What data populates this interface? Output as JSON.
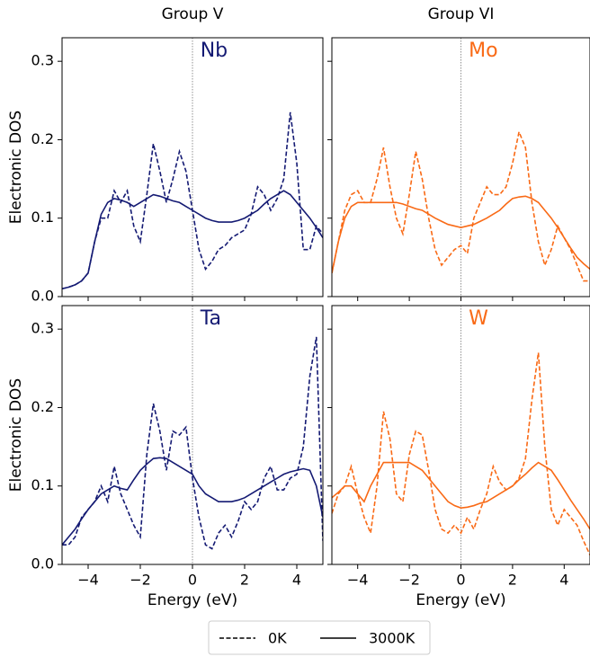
{
  "chart_data": [
    {
      "type": "line",
      "title": "Group V",
      "annotation": "Nb",
      "ylabel": "Electronic DOS",
      "x": [
        -5,
        -4.75,
        -4.5,
        -4.25,
        -4,
        -3.75,
        -3.5,
        -3.25,
        -3,
        -2.75,
        -2.5,
        -2.25,
        -2,
        -1.75,
        -1.5,
        -1.25,
        -1,
        -0.75,
        -0.5,
        -0.25,
        0,
        0.25,
        0.5,
        0.75,
        1,
        1.25,
        1.5,
        1.75,
        2,
        2.25,
        2.5,
        2.75,
        3,
        3.25,
        3.5,
        3.75,
        4,
        4.25,
        4.5,
        4.75,
        5
      ],
      "series": [
        {
          "name": "0K",
          "color": "#141a73",
          "line_style": "dashed",
          "values": [
            0.01,
            0.012,
            0.015,
            0.02,
            0.03,
            0.07,
            0.1,
            0.1,
            0.135,
            0.12,
            0.135,
            0.09,
            0.07,
            0.13,
            0.195,
            0.16,
            0.12,
            0.15,
            0.185,
            0.16,
            0.11,
            0.06,
            0.035,
            0.045,
            0.06,
            0.065,
            0.075,
            0.08,
            0.085,
            0.105,
            0.14,
            0.13,
            0.11,
            0.125,
            0.15,
            0.235,
            0.17,
            0.06,
            0.06,
            0.09,
            0.08
          ]
        },
        {
          "name": "3000K",
          "color": "#141a73",
          "line_style": "solid",
          "values": [
            0.01,
            0.012,
            0.015,
            0.02,
            0.03,
            0.07,
            0.105,
            0.12,
            0.125,
            0.123,
            0.12,
            0.115,
            0.12,
            0.125,
            0.13,
            0.128,
            0.125,
            0.122,
            0.12,
            0.115,
            0.11,
            0.105,
            0.1,
            0.097,
            0.095,
            0.095,
            0.095,
            0.097,
            0.1,
            0.105,
            0.11,
            0.118,
            0.125,
            0.13,
            0.135,
            0.13,
            0.12,
            0.11,
            0.1,
            0.088,
            0.075
          ]
        }
      ],
      "xlim": [
        -5,
        5
      ],
      "ylim": [
        0,
        0.33
      ],
      "xticks": [
        {
          "value": -4,
          "label": "−4"
        },
        {
          "value": -2,
          "label": "−2"
        },
        0,
        2,
        4
      ],
      "xtick_labels": false,
      "yticks": [
        {
          "value": 0,
          "label": "0.0"
        },
        0.1,
        0.2,
        0.3
      ],
      "ytick_labels": true,
      "vline": 0,
      "legend": "bottom"
    },
    {
      "type": "line",
      "title": "Group VI",
      "annotation": "Mo",
      "x": [
        -5,
        -4.75,
        -4.5,
        -4.25,
        -4,
        -3.75,
        -3.5,
        -3.25,
        -3,
        -2.75,
        -2.5,
        -2.25,
        -2,
        -1.75,
        -1.5,
        -1.25,
        -1,
        -0.75,
        -0.5,
        -0.25,
        0,
        0.25,
        0.5,
        0.75,
        1,
        1.25,
        1.5,
        1.75,
        2,
        2.25,
        2.5,
        2.75,
        3,
        3.25,
        3.5,
        3.75,
        4,
        4.25,
        4.5,
        4.75,
        5
      ],
      "series": [
        {
          "name": "0K",
          "color": "#f96a16",
          "line_style": "dashed",
          "values": [
            0.03,
            0.07,
            0.11,
            0.13,
            0.135,
            0.12,
            0.12,
            0.15,
            0.19,
            0.14,
            0.1,
            0.08,
            0.13,
            0.185,
            0.15,
            0.1,
            0.06,
            0.04,
            0.05,
            0.06,
            0.065,
            0.055,
            0.1,
            0.12,
            0.14,
            0.13,
            0.13,
            0.14,
            0.17,
            0.21,
            0.19,
            0.12,
            0.07,
            0.04,
            0.06,
            0.09,
            0.075,
            0.06,
            0.04,
            0.02,
            0.02
          ]
        },
        {
          "name": "3000K",
          "color": "#f96a16",
          "line_style": "solid",
          "values": [
            0.03,
            0.07,
            0.1,
            0.115,
            0.12,
            0.12,
            0.12,
            0.12,
            0.12,
            0.12,
            0.12,
            0.118,
            0.115,
            0.112,
            0.11,
            0.105,
            0.1,
            0.096,
            0.092,
            0.09,
            0.088,
            0.09,
            0.092,
            0.096,
            0.1,
            0.105,
            0.11,
            0.118,
            0.125,
            0.127,
            0.128,
            0.125,
            0.12,
            0.11,
            0.1,
            0.088,
            0.075,
            0.062,
            0.05,
            0.042,
            0.035
          ]
        }
      ],
      "xlim": [
        -5,
        5
      ],
      "ylim": [
        0,
        0.33
      ],
      "xticks": [
        {
          "value": -4,
          "label": "−4"
        },
        {
          "value": -2,
          "label": "−2"
        },
        0,
        2,
        4
      ],
      "xtick_labels": false,
      "yticks": [
        0,
        0.1,
        0.2,
        0.3
      ],
      "ytick_labels": false,
      "vline": 0
    },
    {
      "type": "line",
      "annotation": "Ta",
      "ylabel": "Electronic DOS",
      "xlabel": "Energy (eV)",
      "x": [
        -5,
        -4.75,
        -4.5,
        -4.25,
        -4,
        -3.75,
        -3.5,
        -3.25,
        -3,
        -2.75,
        -2.5,
        -2.25,
        -2,
        -1.75,
        -1.5,
        -1.25,
        -1,
        -0.75,
        -0.5,
        -0.25,
        0,
        0.25,
        0.5,
        0.75,
        1,
        1.25,
        1.5,
        1.75,
        2,
        2.25,
        2.5,
        2.75,
        3,
        3.25,
        3.5,
        3.75,
        4,
        4.25,
        4.5,
        4.75,
        5
      ],
      "series": [
        {
          "name": "0K",
          "color": "#141a73",
          "line_style": "dashed",
          "values": [
            0.025,
            0.025,
            0.035,
            0.06,
            0.07,
            0.08,
            0.1,
            0.08,
            0.125,
            0.09,
            0.07,
            0.05,
            0.035,
            0.14,
            0.205,
            0.17,
            0.12,
            0.17,
            0.165,
            0.175,
            0.11,
            0.06,
            0.025,
            0.02,
            0.04,
            0.05,
            0.035,
            0.055,
            0.08,
            0.07,
            0.08,
            0.11,
            0.125,
            0.095,
            0.095,
            0.11,
            0.115,
            0.15,
            0.24,
            0.29,
            0.03
          ]
        },
        {
          "name": "3000K",
          "color": "#141a73",
          "line_style": "solid",
          "values": [
            0.025,
            0.035,
            0.045,
            0.058,
            0.07,
            0.08,
            0.09,
            0.095,
            0.1,
            0.097,
            0.095,
            0.108,
            0.12,
            0.128,
            0.135,
            0.136,
            0.135,
            0.13,
            0.125,
            0.12,
            0.115,
            0.1,
            0.09,
            0.085,
            0.08,
            0.08,
            0.08,
            0.082,
            0.085,
            0.09,
            0.095,
            0.1,
            0.105,
            0.11,
            0.115,
            0.118,
            0.12,
            0.122,
            0.12,
            0.1,
            0.06
          ]
        }
      ],
      "xlim": [
        -5,
        5
      ],
      "ylim": [
        0,
        0.33
      ],
      "xticks": [
        {
          "value": -4,
          "label": "−4"
        },
        {
          "value": -2,
          "label": "−2"
        },
        0,
        2,
        4
      ],
      "xtick_labels": true,
      "yticks": [
        {
          "value": 0,
          "label": "0.0"
        },
        0.1,
        0.2,
        0.3
      ],
      "ytick_labels": true,
      "vline": 0
    },
    {
      "type": "line",
      "annotation": "W",
      "xlabel": "Energy (eV)",
      "x": [
        -5,
        -4.75,
        -4.5,
        -4.25,
        -4,
        -3.75,
        -3.5,
        -3.25,
        -3,
        -2.75,
        -2.5,
        -2.25,
        -2,
        -1.75,
        -1.5,
        -1.25,
        -1,
        -0.75,
        -0.5,
        -0.25,
        0,
        0.25,
        0.5,
        0.75,
        1,
        1.25,
        1.5,
        1.75,
        2,
        2.25,
        2.5,
        2.75,
        3,
        3.25,
        3.5,
        3.75,
        4,
        4.25,
        4.5,
        4.75,
        5
      ],
      "series": [
        {
          "name": "0K",
          "color": "#f96a16",
          "line_style": "dashed",
          "values": [
            0.065,
            0.09,
            0.1,
            0.125,
            0.09,
            0.06,
            0.04,
            0.1,
            0.195,
            0.16,
            0.09,
            0.08,
            0.14,
            0.17,
            0.165,
            0.12,
            0.07,
            0.045,
            0.04,
            0.05,
            0.04,
            0.06,
            0.045,
            0.07,
            0.09,
            0.125,
            0.105,
            0.095,
            0.1,
            0.11,
            0.135,
            0.21,
            0.27,
            0.15,
            0.07,
            0.05,
            0.07,
            0.06,
            0.05,
            0.03,
            0.012
          ]
        },
        {
          "name": "3000K",
          "color": "#f96a16",
          "line_style": "solid",
          "values": [
            0.085,
            0.092,
            0.1,
            0.1,
            0.09,
            0.08,
            0.1,
            0.115,
            0.13,
            0.13,
            0.13,
            0.13,
            0.13,
            0.125,
            0.12,
            0.11,
            0.1,
            0.09,
            0.08,
            0.075,
            0.072,
            0.073,
            0.075,
            0.078,
            0.08,
            0.085,
            0.09,
            0.095,
            0.1,
            0.108,
            0.115,
            0.123,
            0.13,
            0.125,
            0.12,
            0.108,
            0.095,
            0.082,
            0.07,
            0.058,
            0.045
          ]
        }
      ],
      "xlim": [
        -5,
        5
      ],
      "ylim": [
        0,
        0.33
      ],
      "xticks": [
        {
          "value": -4,
          "label": "−4"
        },
        {
          "value": -2,
          "label": "−2"
        },
        0,
        2,
        4
      ],
      "xtick_labels": true,
      "yticks": [
        0,
        0.1,
        0.2,
        0.3
      ],
      "ytick_labels": false,
      "vline": 0
    }
  ]
}
